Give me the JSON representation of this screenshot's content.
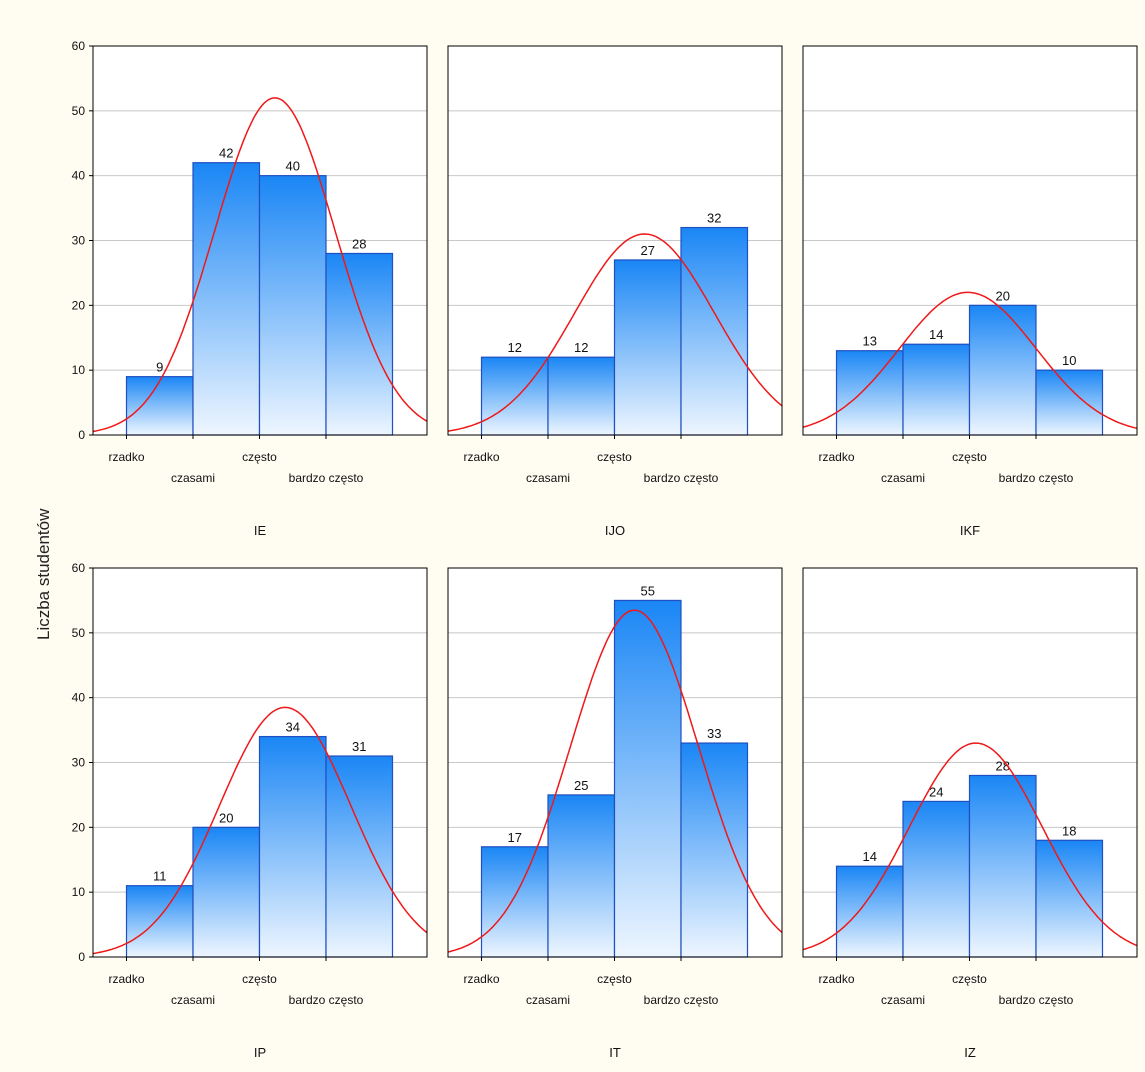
{
  "ylabel": "Liczba studentów",
  "colors": {
    "bar_top": "#1a86f5",
    "bar_bottom": "#eef6ff",
    "bar_stroke": "#1f4fc0",
    "curve": "#f01818",
    "grid": "#c8c8c8",
    "frame": "#000000",
    "background": "#fffcf2",
    "plot_bg": "#ffffff"
  },
  "chart_data": [
    {
      "type": "bar",
      "title": "IE",
      "categories": [
        "rzadko",
        "czasami",
        "często",
        "bardzo często"
      ],
      "values": [
        9,
        42,
        40,
        28
      ],
      "ylim": [
        0,
        60
      ],
      "yticks": [
        0,
        10,
        20,
        30,
        40,
        50,
        60
      ],
      "grid": true,
      "fit_curve": "normal",
      "curve_peak": 52
    },
    {
      "type": "bar",
      "title": "IJO",
      "categories": [
        "rzadko",
        "czasami",
        "często",
        "bardzo często"
      ],
      "values": [
        12,
        12,
        27,
        32
      ],
      "ylim": [
        0,
        60
      ],
      "yticks": [
        0,
        10,
        20,
        30,
        40,
        50,
        60
      ],
      "grid": true,
      "fit_curve": "normal",
      "curve_peak": 31
    },
    {
      "type": "bar",
      "title": "IKF",
      "categories": [
        "rzadko",
        "czasami",
        "często",
        "bardzo często"
      ],
      "values": [
        13,
        14,
        20,
        10
      ],
      "ylim": [
        0,
        60
      ],
      "yticks": [
        0,
        10,
        20,
        30,
        40,
        50,
        60
      ],
      "grid": true,
      "fit_curve": "normal",
      "curve_peak": 22
    },
    {
      "type": "bar",
      "title": "IP",
      "categories": [
        "rzadko",
        "czasami",
        "często",
        "bardzo często"
      ],
      "values": [
        11,
        20,
        34,
        31
      ],
      "ylim": [
        0,
        60
      ],
      "yticks": [
        0,
        10,
        20,
        30,
        40,
        50,
        60
      ],
      "grid": true,
      "fit_curve": "normal",
      "curve_peak": 38.5
    },
    {
      "type": "bar",
      "title": "IT",
      "categories": [
        "rzadko",
        "czasami",
        "często",
        "bardzo często"
      ],
      "values": [
        17,
        25,
        55,
        33
      ],
      "ylim": [
        0,
        60
      ],
      "yticks": [
        0,
        10,
        20,
        30,
        40,
        50,
        60
      ],
      "grid": true,
      "fit_curve": "normal",
      "curve_peak": 53.5
    },
    {
      "type": "bar",
      "title": "IZ",
      "categories": [
        "rzadko",
        "czasami",
        "często",
        "bardzo często"
      ],
      "values": [
        14,
        24,
        28,
        18
      ],
      "ylim": [
        0,
        60
      ],
      "yticks": [
        0,
        10,
        20,
        30,
        40,
        50,
        60
      ],
      "grid": true,
      "fit_curve": "normal",
      "curve_peak": 33
    }
  ]
}
